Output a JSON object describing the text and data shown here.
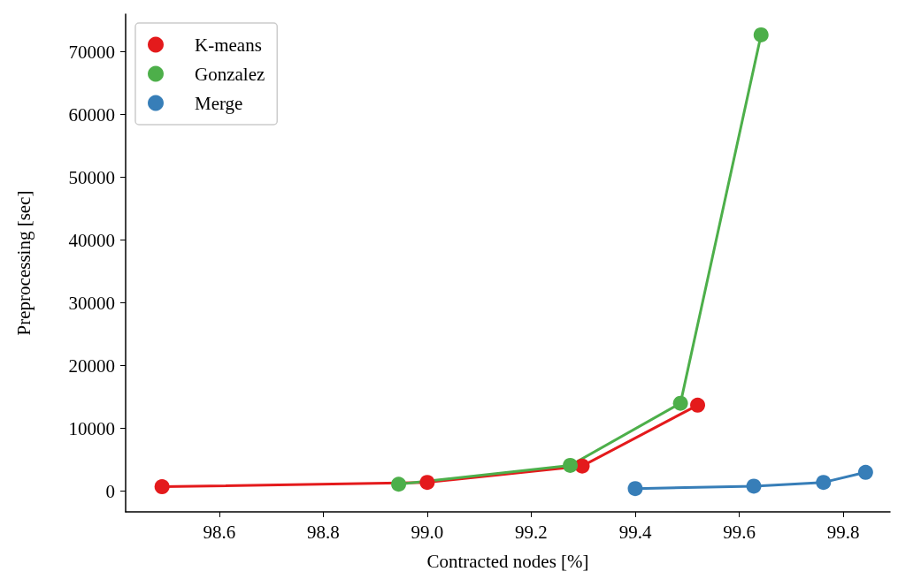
{
  "chart_data": {
    "type": "line",
    "xlabel": "Contracted nodes [%]",
    "ylabel": "Preprocessing [sec]",
    "xlim": [
      98.42,
      99.89
    ],
    "xticks": [
      98.6,
      98.8,
      {
        "value": 99,
        "label": "99.0"
      },
      99.2,
      99.4,
      99.6,
      99.8
    ],
    "ylim": [
      -3300,
      76000
    ],
    "yticks": [
      0,
      10000,
      20000,
      30000,
      40000,
      50000,
      60000,
      70000
    ],
    "legend": "top left",
    "marker": "circle",
    "grid": false,
    "series": [
      {
        "name": "K-means",
        "color": "#e41a1c",
        "x": [
          98.49,
          99.0,
          99.298,
          99.52
        ],
        "values": [
          700,
          1400,
          4000,
          13700
        ]
      },
      {
        "name": "Gonzalez",
        "color": "#4daf4a",
        "x": [
          98.945,
          99.275,
          99.487,
          99.642
        ],
        "values": [
          1100,
          4100,
          14000,
          72700
        ]
      },
      {
        "name": "Merge",
        "color": "#377eb8",
        "x": [
          99.4,
          99.628,
          99.762,
          99.843
        ],
        "values": [
          400,
          800,
          1400,
          3000
        ]
      }
    ]
  }
}
